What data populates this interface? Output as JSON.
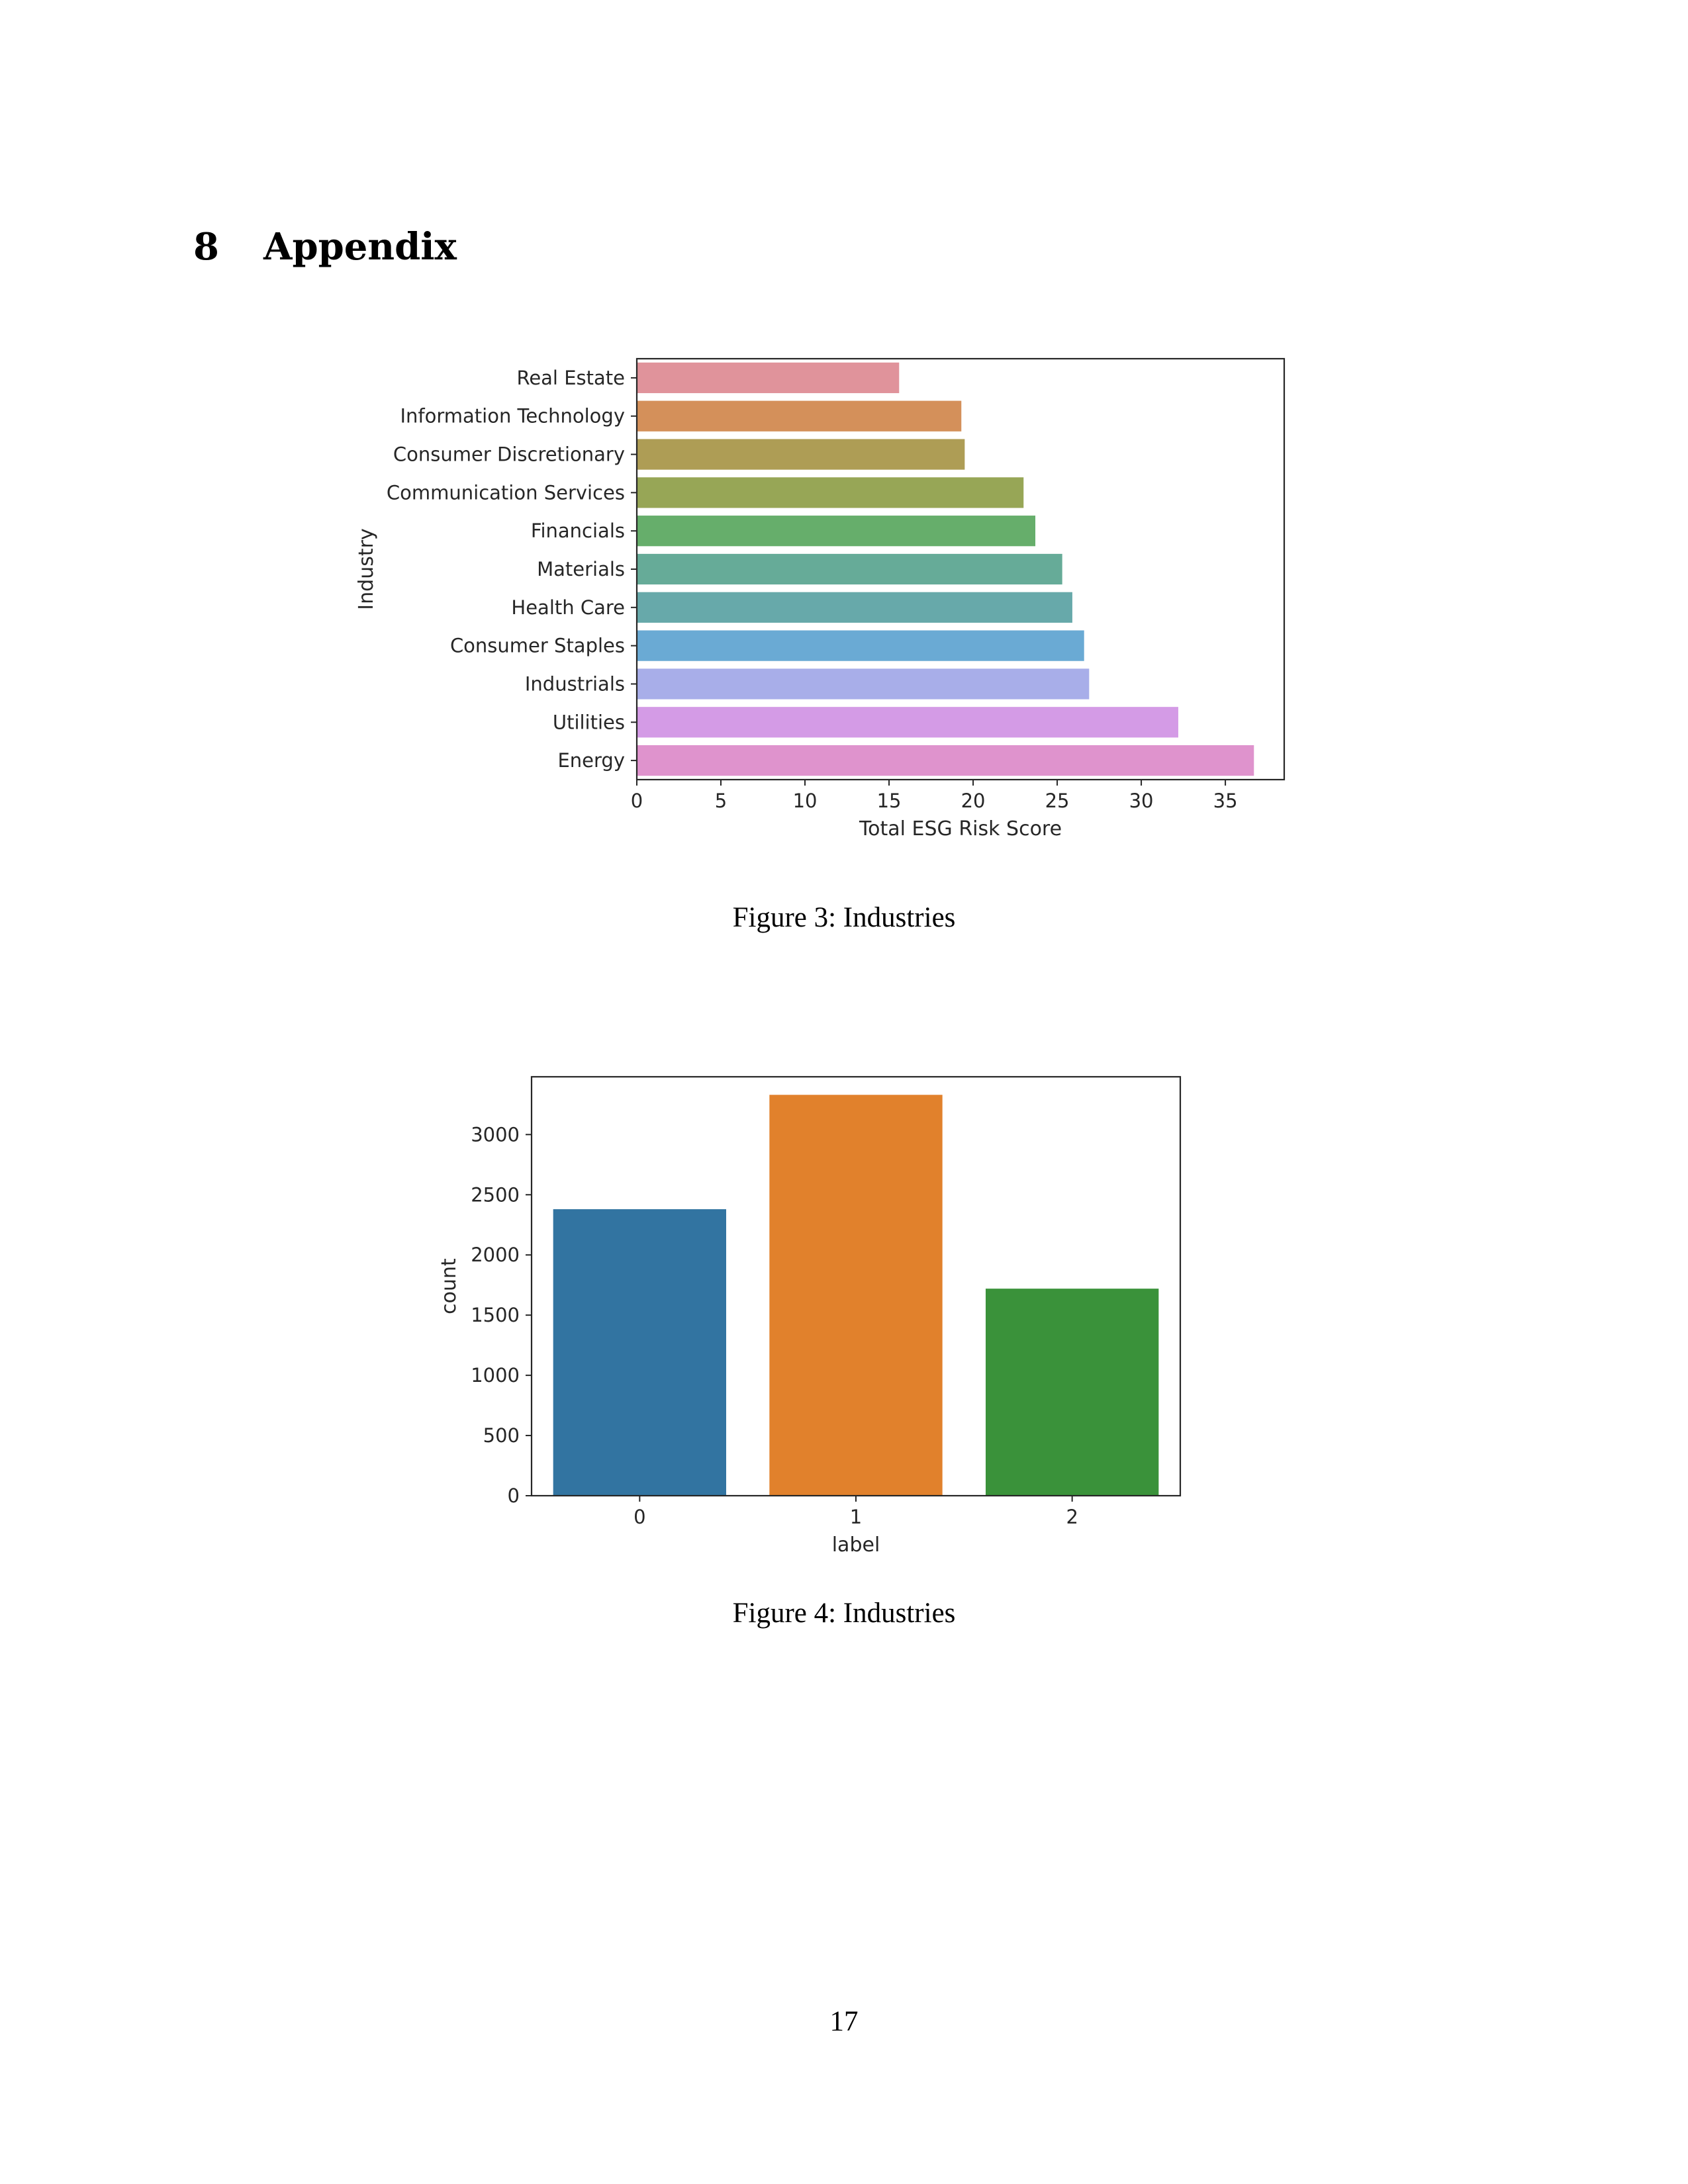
{
  "section": {
    "number": "8",
    "title": "Appendix"
  },
  "figure3": {
    "caption": "Figure 3: Industries",
    "chart_data": {
      "type": "bar",
      "orientation": "horizontal",
      "categories": [
        "Real Estate",
        "Information Technology",
        "Consumer Discretionary",
        "Communication Services",
        "Financials",
        "Materials",
        "Health Care",
        "Consumer Staples",
        "Industrials",
        "Utilities",
        "Energy"
      ],
      "values": [
        15.6,
        19.3,
        19.5,
        23.0,
        23.7,
        25.3,
        25.9,
        26.6,
        26.9,
        32.2,
        36.7
      ],
      "colors": [
        "#e0939b",
        "#d4905a",
        "#ae9d55",
        "#97a656",
        "#66ae6b",
        "#66ab98",
        "#67a9aa",
        "#6aaad4",
        "#a8aee9",
        "#d49be6",
        "#df93cd"
      ],
      "xlabel": "Total ESG Risk Score",
      "ylabel": "Industry",
      "xlim": [
        0,
        38.5
      ],
      "xticks": [
        0,
        5,
        10,
        15,
        20,
        25,
        30,
        35
      ],
      "grid": false
    }
  },
  "figure4": {
    "caption": "Figure 4: Industries",
    "chart_data": {
      "type": "bar",
      "categories": [
        "0",
        "1",
        "2"
      ],
      "values": [
        2380,
        3330,
        1720
      ],
      "colors": [
        "#3274a1",
        "#e1812c",
        "#3a923a"
      ],
      "xlabel": "label",
      "ylabel": "count",
      "ylim": [
        0,
        3480
      ],
      "yticks": [
        0,
        500,
        1000,
        1500,
        2000,
        2500,
        3000
      ],
      "grid": false
    }
  },
  "page_number": "17"
}
